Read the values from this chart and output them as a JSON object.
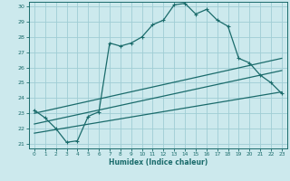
{
  "xlabel": "Humidex (Indice chaleur)",
  "bg_color": "#cce9ed",
  "grid_color": "#9fcdd4",
  "line_color": "#1a6b6b",
  "xlim": [
    -0.5,
    23.5
  ],
  "ylim": [
    20.7,
    30.3
  ],
  "xticks": [
    0,
    1,
    2,
    3,
    4,
    5,
    6,
    7,
    8,
    9,
    10,
    11,
    12,
    13,
    14,
    15,
    16,
    17,
    18,
    19,
    20,
    21,
    22,
    23
  ],
  "yticks": [
    21,
    22,
    23,
    24,
    25,
    26,
    27,
    28,
    29,
    30
  ],
  "main_curve_x": [
    0,
    1,
    2,
    3,
    4,
    5,
    6,
    7,
    8,
    9,
    10,
    11,
    12,
    13,
    14,
    15,
    16,
    17,
    18,
    19,
    20,
    21,
    22,
    23
  ],
  "main_curve_y": [
    23.2,
    22.7,
    22.0,
    21.1,
    21.2,
    22.8,
    23.1,
    27.6,
    27.4,
    27.6,
    28.0,
    28.8,
    29.1,
    30.1,
    30.2,
    29.5,
    29.8,
    29.1,
    28.7,
    26.6,
    26.3,
    25.5,
    25.0,
    24.3
  ],
  "line1_x": [
    0,
    23
  ],
  "line1_y": [
    23.0,
    26.6
  ],
  "line2_x": [
    0,
    23
  ],
  "line2_y": [
    22.3,
    25.8
  ],
  "line3_x": [
    0,
    23
  ],
  "line3_y": [
    21.7,
    24.4
  ]
}
